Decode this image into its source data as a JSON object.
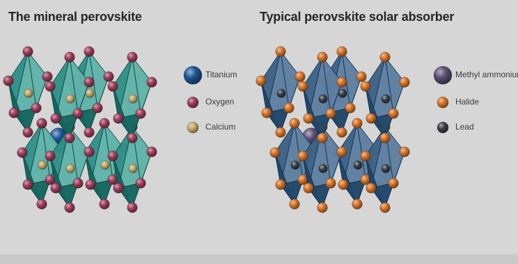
{
  "panels": [
    {
      "title": "The mineral perovskite",
      "theme": {
        "face_light": "#5fb3aa",
        "face_mid": "#2f9188",
        "face_dark": "#13675f",
        "edge": "#0d4640",
        "bond": "#3f6d66"
      },
      "legend": [
        {
          "label": "Titanium",
          "color": "#1b5596",
          "size": "large"
        },
        {
          "label": "Oxygen",
          "color": "#a03d5c",
          "size": "small"
        },
        {
          "label": "Calcium",
          "color": "#c7ab6c",
          "size": "small"
        }
      ]
    },
    {
      "title": "Typical perovskite solar absorber",
      "theme": {
        "face_light": "#5e7fa2",
        "face_mid": "#3d6287",
        "face_dark": "#204668",
        "edge": "#13324f",
        "bond": "#3a5470"
      },
      "legend": [
        {
          "label": "Methyl ammonium",
          "color": "#5a5073",
          "size": "large"
        },
        {
          "label": "Halide",
          "color": "#d97426",
          "size": "small"
        },
        {
          "label": "Lead",
          "color": "#3d4045",
          "size": "small"
        }
      ]
    }
  ]
}
